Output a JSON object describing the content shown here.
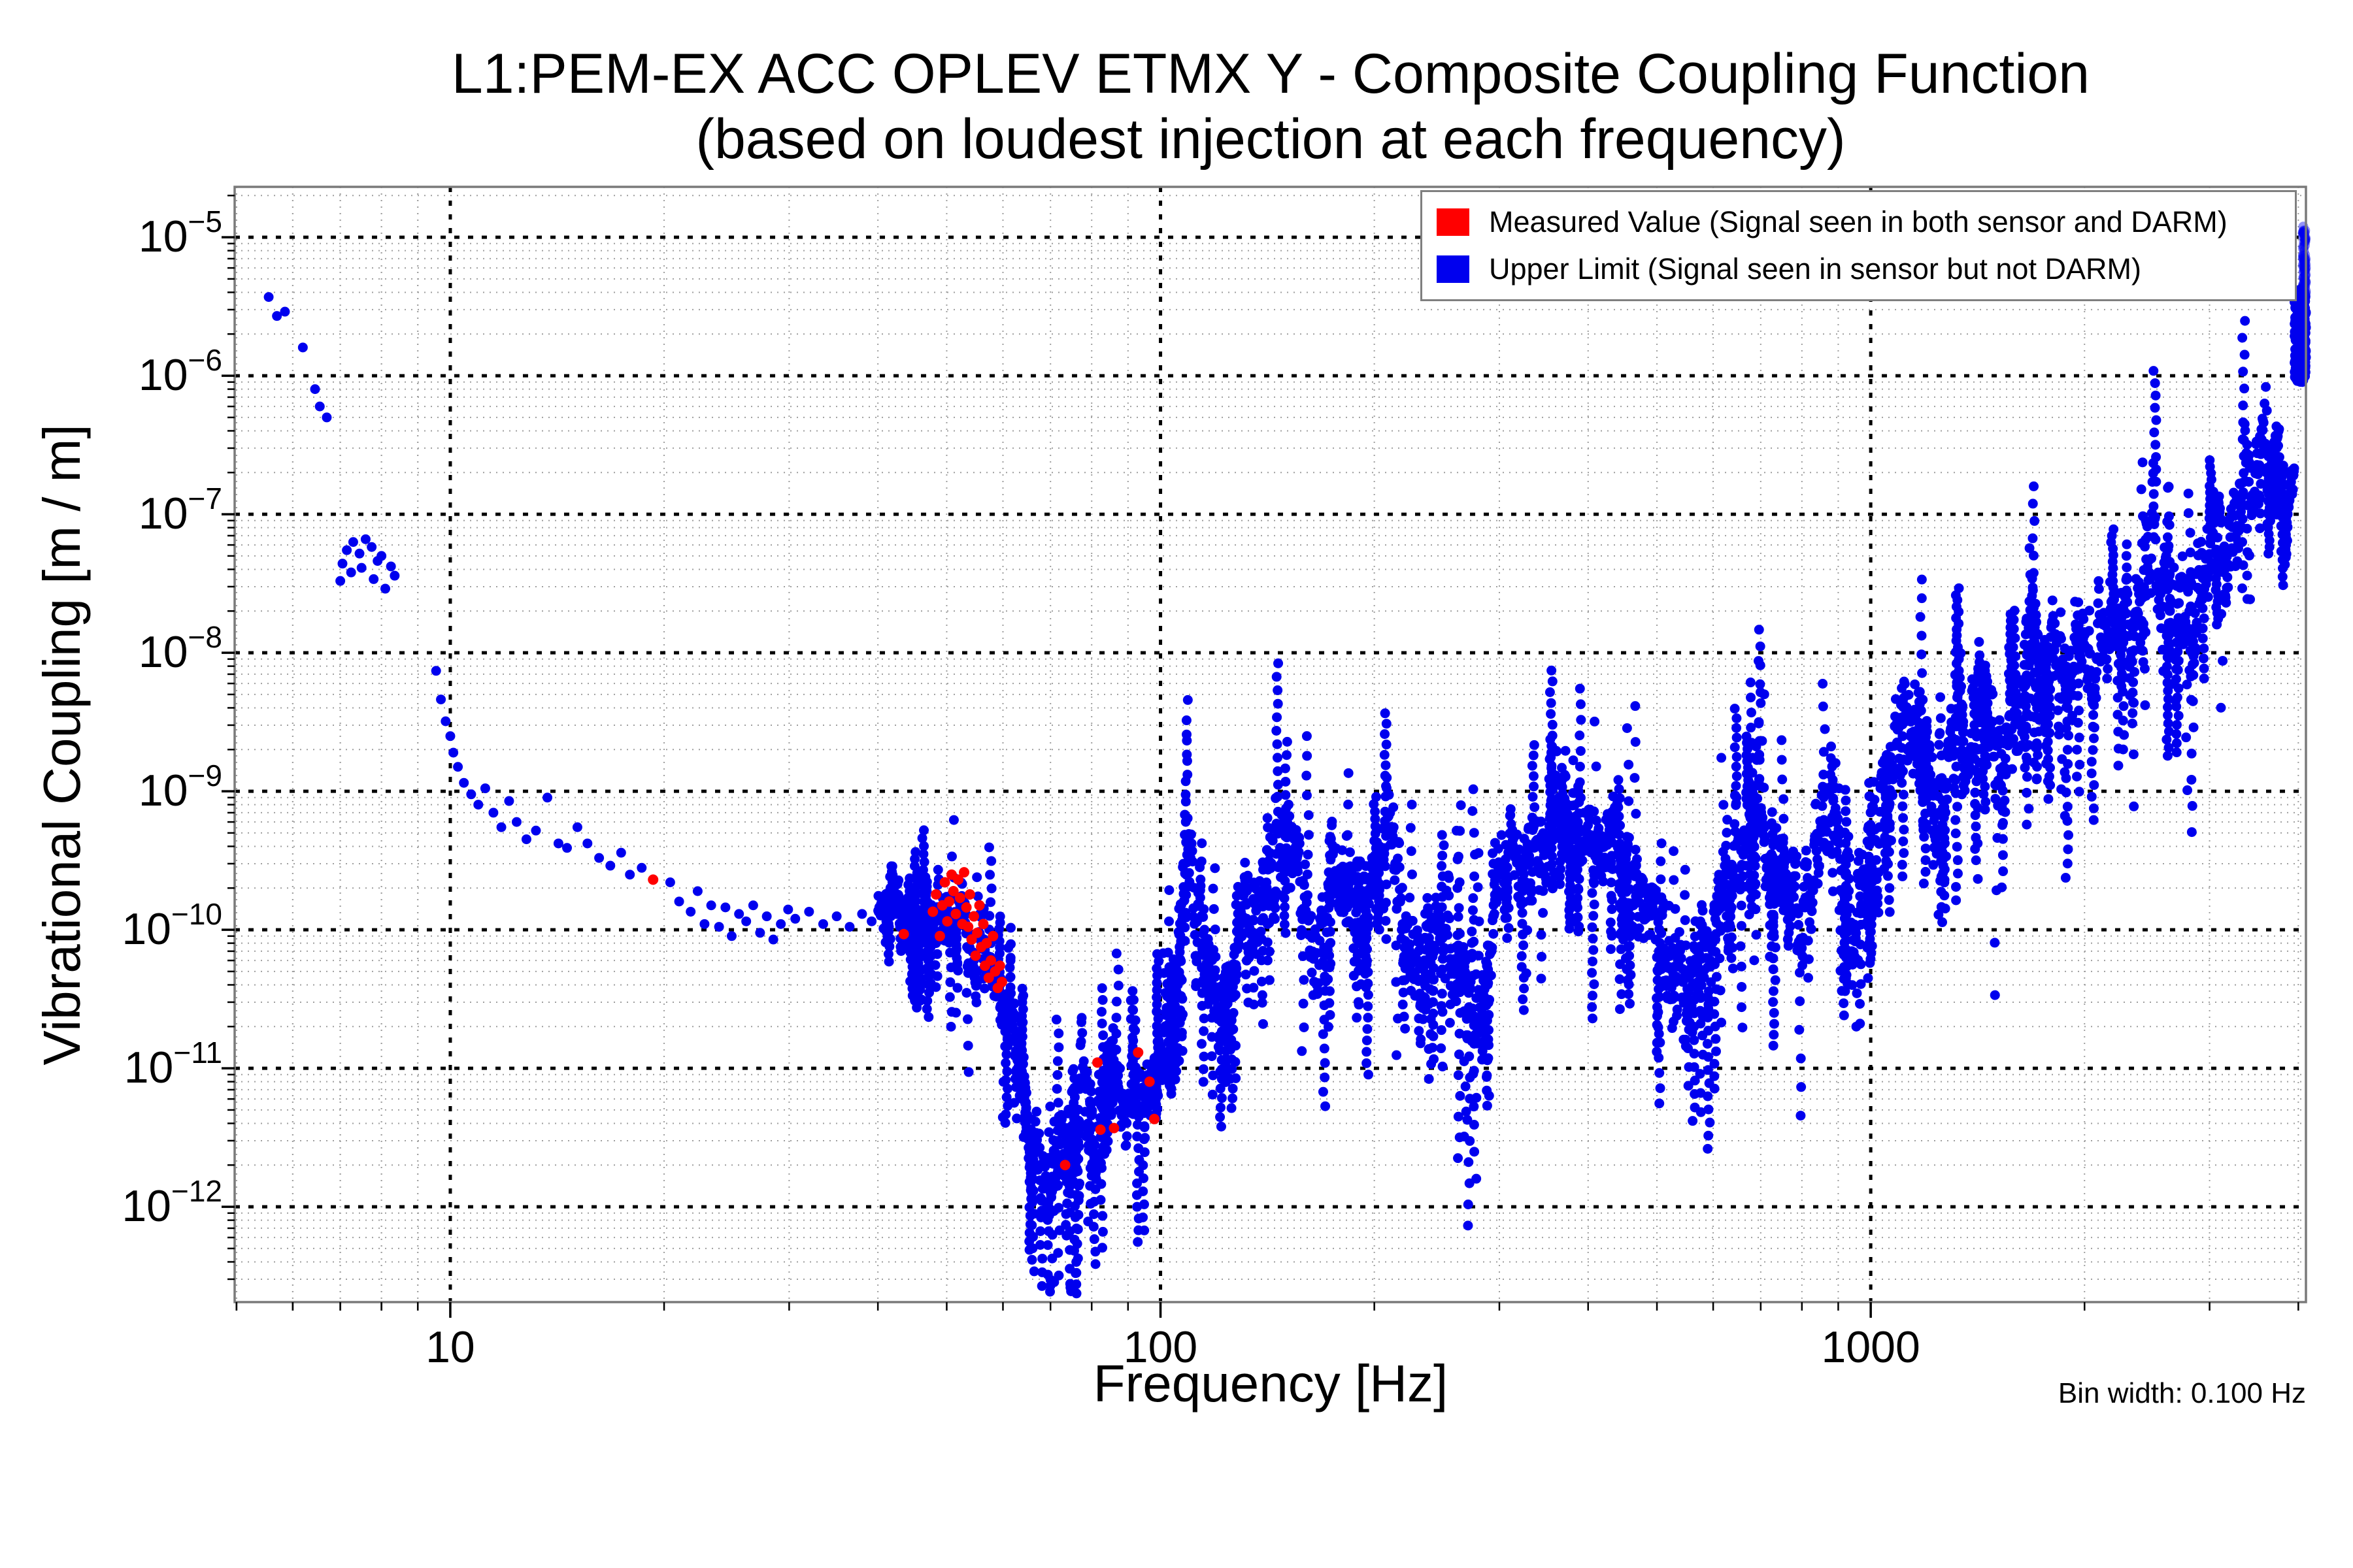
{
  "title": {
    "line1": "L1:PEM-EX ACC OPLEV ETMX Y - Composite Coupling Function",
    "line2": "(based on loudest injection at each frequency)"
  },
  "axes": {
    "xlabel": "Frequency [Hz]",
    "ylabel": "Vibrational Coupling [m / m]",
    "annotation": "Bin width: 0.100 Hz"
  },
  "legend": {
    "items": [
      {
        "label": "Measured Value (Signal seen in both sensor and DARM)",
        "color": "#ff0000"
      },
      {
        "label": "Upper Limit (Signal seen in sensor but not DARM)",
        "color": "#0000ee"
      }
    ]
  },
  "chart_data": {
    "type": "scatter",
    "title": "L1:PEM-EX ACC OPLEV ETMX Y - Composite Coupling Function",
    "subtitle": "(based on loudest injection at each frequency)",
    "xlabel": "Frequency [Hz]",
    "ylabel": "Vibrational Coupling [m / m]",
    "bin_width_hz": 0.1,
    "x_scale": "log",
    "y_scale": "log",
    "xlim": [
      4.97,
      4100
    ],
    "ylim": [
      2.05e-13,
      2.31e-05
    ],
    "x_major_ticks": [
      10,
      100,
      1000
    ],
    "x_tick_labels": [
      "10",
      "100",
      "1000"
    ],
    "y_major_tick_exponents": [
      -5,
      -6,
      -7,
      -8,
      -9,
      -10,
      -11,
      -12
    ],
    "grid": "both",
    "legend_position": "upper right",
    "colors": {
      "grid_major": "#000000",
      "grid_minor": "#9e9e9e",
      "spine": "#7a7a7a"
    },
    "series": [
      {
        "name": "Upper Limit (Signal seen in sensor but not DARM)",
        "color": "#0000ee",
        "marker_radius": 7.5,
        "noise_seed": 20,
        "points_per_decade": 1600,
        "strand_probability": 0.09,
        "sparse_points": [
          [
            5.55,
            3.7e-06
          ],
          [
            5.7,
            2.7e-06
          ],
          [
            5.85,
            2.9e-06
          ],
          [
            6.2,
            1.6e-06
          ],
          [
            6.45,
            8e-07
          ],
          [
            6.55,
            6e-07
          ],
          [
            6.7,
            5e-07
          ],
          [
            7.0,
            3.3e-08
          ],
          [
            7.05,
            4.4e-08
          ],
          [
            7.15,
            5.5e-08
          ],
          [
            7.25,
            3.8e-08
          ],
          [
            7.3,
            6.3e-08
          ],
          [
            7.45,
            5.2e-08
          ],
          [
            7.5,
            4.1e-08
          ],
          [
            7.6,
            6.6e-08
          ],
          [
            7.75,
            5.8e-08
          ],
          [
            7.8,
            3.4e-08
          ],
          [
            7.9,
            4.6e-08
          ],
          [
            8.0,
            5e-08
          ],
          [
            8.1,
            2.9e-08
          ],
          [
            8.25,
            4.2e-08
          ],
          [
            8.35,
            3.6e-08
          ],
          [
            9.55,
            7.4e-09
          ],
          [
            9.7,
            4.6e-09
          ],
          [
            9.85,
            3.2e-09
          ],
          [
            10.0,
            2.5e-09
          ],
          [
            10.1,
            1.9e-09
          ],
          [
            10.25,
            1.5e-09
          ],
          [
            10.45,
            1.15e-09
          ],
          [
            10.7,
            9.5e-10
          ],
          [
            10.95,
            8e-10
          ],
          [
            11.2,
            1.05e-09
          ],
          [
            11.5,
            7e-10
          ],
          [
            11.8,
            5.5e-10
          ],
          [
            12.1,
            8.5e-10
          ],
          [
            12.4,
            6e-10
          ],
          [
            12.8,
            4.5e-10
          ],
          [
            13.2,
            5.2e-10
          ],
          [
            13.7,
            9e-10
          ],
          [
            14.2,
            4.2e-10
          ],
          [
            14.6,
            3.9e-10
          ],
          [
            15.1,
            5.5e-10
          ],
          [
            15.6,
            4.2e-10
          ],
          [
            16.2,
            3.3e-10
          ],
          [
            16.8,
            2.9e-10
          ],
          [
            17.4,
            3.6e-10
          ],
          [
            17.9,
            2.5e-10
          ],
          [
            18.6,
            2.8e-10
          ],
          [
            20.4,
            2.2e-10
          ],
          [
            21.0,
            1.6e-10
          ],
          [
            21.8,
            1.35e-10
          ],
          [
            22.3,
            1.9e-10
          ],
          [
            22.8,
            1.1e-10
          ],
          [
            23.3,
            1.5e-10
          ],
          [
            23.9,
            1.05e-10
          ],
          [
            24.4,
            1.45e-10
          ],
          [
            24.9,
            9e-11
          ],
          [
            25.5,
            1.3e-10
          ],
          [
            26.1,
            1.15e-10
          ],
          [
            26.7,
            1.5e-10
          ],
          [
            27.3,
            9.5e-11
          ],
          [
            27.9,
            1.25e-10
          ],
          [
            28.5,
            8.5e-11
          ],
          [
            29.2,
            1.1e-10
          ],
          [
            29.9,
            1.4e-10
          ],
          [
            30.6,
            1.2e-10
          ],
          [
            32,
            1.35e-10
          ],
          [
            33.5,
            1.1e-10
          ],
          [
            35,
            1.25e-10
          ],
          [
            36.5,
            1.05e-10
          ],
          [
            38,
            1.3e-10
          ],
          [
            39.2,
            1.15e-10
          ],
          [
            3585,
            6.3e-07
          ],
          [
            3600,
            8.3e-07
          ],
          [
            3612,
            5.6e-07
          ]
        ],
        "envelope_log10": [
          [
            40,
            -9.85,
            0.22
          ],
          [
            44,
            -9.88,
            0.25
          ],
          [
            48,
            -9.95,
            0.28
          ],
          [
            52,
            -9.95,
            0.3
          ],
          [
            56,
            -10.1,
            0.3
          ],
          [
            60,
            -10.45,
            0.28
          ],
          [
            63,
            -10.9,
            0.3
          ],
          [
            66,
            -11.45,
            0.35
          ],
          [
            69,
            -11.95,
            0.4
          ],
          [
            72,
            -11.75,
            0.5
          ],
          [
            75,
            -11.45,
            0.45
          ],
          [
            78,
            -11.15,
            0.45
          ],
          [
            81,
            -11.35,
            0.4
          ],
          [
            85,
            -10.95,
            0.4
          ],
          [
            89,
            -11.35,
            0.35
          ],
          [
            93,
            -11.25,
            0.35
          ],
          [
            97,
            -11.05,
            0.3
          ],
          [
            101,
            -10.85,
            0.3
          ],
          [
            105,
            -10.35,
            0.4
          ],
          [
            109,
            -9.55,
            0.5
          ],
          [
            113,
            -9.8,
            0.5
          ],
          [
            117,
            -10.35,
            0.4
          ],
          [
            121,
            -10.6,
            0.4
          ],
          [
            126,
            -10.25,
            0.35
          ],
          [
            131,
            -10.05,
            0.35
          ],
          [
            138,
            -9.85,
            0.4
          ],
          [
            145,
            -9.5,
            0.45
          ],
          [
            152,
            -9.35,
            0.4
          ],
          [
            159,
            -9.75,
            0.4
          ],
          [
            166,
            -10.15,
            0.5
          ],
          [
            173,
            -9.8,
            0.4
          ],
          [
            181,
            -9.6,
            0.4
          ],
          [
            190,
            -9.9,
            0.42
          ],
          [
            200,
            -9.7,
            0.45
          ],
          [
            210,
            -9.25,
            0.5
          ],
          [
            221,
            -9.9,
            0.5
          ],
          [
            233,
            -10.25,
            0.5
          ],
          [
            246,
            -10.05,
            0.45
          ],
          [
            260,
            -10.3,
            0.5
          ],
          [
            277,
            -10.45,
            0.65
          ],
          [
            292,
            -9.9,
            0.42
          ],
          [
            308,
            -9.6,
            0.4
          ],
          [
            325,
            -9.5,
            0.4
          ],
          [
            345,
            -9.3,
            0.38
          ],
          [
            368,
            -9.05,
            0.35
          ],
          [
            390,
            -9.3,
            0.4
          ],
          [
            412,
            -9.4,
            0.4
          ],
          [
            432,
            -9.15,
            0.4
          ],
          [
            458,
            -9.7,
            0.42
          ],
          [
            485,
            -9.9,
            0.45
          ],
          [
            515,
            -10.15,
            0.5
          ],
          [
            546,
            -10.55,
            0.6
          ],
          [
            577,
            -10.1,
            0.42
          ],
          [
            605,
            -9.9,
            0.4
          ],
          [
            628,
            -9.65,
            0.4
          ],
          [
            648,
            -9.4,
            0.42
          ],
          [
            670,
            -9.3,
            0.45
          ],
          [
            690,
            -8.95,
            0.5
          ],
          [
            712,
            -9.5,
            0.42
          ],
          [
            737,
            -9.6,
            0.4
          ],
          [
            763,
            -9.4,
            0.4
          ],
          [
            791,
            -10.0,
            0.5
          ],
          [
            820,
            -9.6,
            0.42
          ],
          [
            851,
            -9.35,
            0.42
          ],
          [
            883,
            -9.1,
            0.45
          ],
          [
            916,
            -9.8,
            0.5
          ],
          [
            948,
            -10.05,
            0.5
          ],
          [
            981,
            -9.6,
            0.45
          ],
          [
            1010,
            -9.3,
            0.45
          ],
          [
            1045,
            -9.0,
            0.45
          ],
          [
            1085,
            -8.7,
            0.45
          ],
          [
            1140,
            -8.45,
            0.45
          ],
          [
            1210,
            -9.0,
            0.5
          ],
          [
            1280,
            -8.75,
            0.45
          ],
          [
            1355,
            -8.55,
            0.45
          ],
          [
            1430,
            -8.35,
            0.45
          ],
          [
            1500,
            -8.8,
            0.55
          ],
          [
            1565,
            -8.75,
            0.55
          ],
          [
            1625,
            -8.3,
            0.5
          ],
          [
            1680,
            -7.7,
            0.5
          ],
          [
            1745,
            -7.95,
            0.45
          ],
          [
            1810,
            -8.1,
            0.5
          ],
          [
            1880,
            -8.25,
            0.5
          ],
          [
            1955,
            -8.0,
            0.5
          ],
          [
            2030,
            -8.2,
            0.5
          ],
          [
            2120,
            -7.9,
            0.45
          ],
          [
            2210,
            -7.65,
            0.45
          ],
          [
            2310,
            -7.8,
            0.5
          ],
          [
            2410,
            -7.6,
            0.5
          ],
          [
            2510,
            -7.4,
            0.5
          ],
          [
            2615,
            -7.75,
            0.6
          ],
          [
            2730,
            -7.95,
            0.65
          ],
          [
            2850,
            -7.5,
            0.5
          ],
          [
            2960,
            -7.3,
            0.45
          ],
          [
            3080,
            -7.1,
            0.45
          ],
          [
            3200,
            -7.15,
            0.42
          ],
          [
            3310,
            -7.0,
            0.4
          ],
          [
            3420,
            -6.85,
            0.4
          ],
          [
            3530,
            -6.62,
            0.35
          ],
          [
            3640,
            -6.5,
            0.3
          ],
          [
            3760,
            -6.75,
            0.3
          ],
          [
            3880,
            -6.7,
            0.28
          ],
          [
            3950,
            -6.6,
            0.28
          ]
        ],
        "edge_spike": {
          "solid": {
            "f": [
              3950,
              4100
            ],
            "log10_v": [
              -6.05,
              -5.37
            ],
            "n": 170
          },
          "solid_edge": {
            "f": [
              4055,
              4100
            ],
            "log10_v": [
              -6.0,
              -5.42
            ],
            "n": 70
          },
          "light": {
            "f": [
              4058,
              4100
            ],
            "log10_v": [
              -5.45,
              -4.92
            ],
            "n": 90,
            "opacity": 0.42
          }
        }
      },
      {
        "name": "Measured Value (Signal seen in both sensor and DARM)",
        "color": "#ff0000",
        "marker_radius": 8,
        "points": [
          [
            19.3,
            2.3e-10
          ],
          [
            43.5,
            9.3e-11
          ],
          [
            47.8,
            1.35e-10
          ],
          [
            48.3,
            1.8e-10
          ],
          [
            48.9,
            9e-11
          ],
          [
            49.3,
            1.5e-10
          ],
          [
            49.7,
            2.2e-10
          ],
          [
            50.1,
            1.15e-10
          ],
          [
            50.4,
            1.6e-10
          ],
          [
            50.8,
            2.5e-10
          ],
          [
            51.1,
            1.9e-10
          ],
          [
            51.5,
            1.3e-10
          ],
          [
            51.9,
            2.3e-10
          ],
          [
            52.2,
            1.7e-10
          ],
          [
            52.6,
            1.1e-10
          ],
          [
            52.9,
            2.6e-10
          ],
          [
            53.3,
            1.45e-10
          ],
          [
            53.6,
            1.05e-10
          ],
          [
            53.9,
            1.8e-10
          ],
          [
            54.2,
            8.5e-11
          ],
          [
            54.6,
            1.25e-10
          ],
          [
            54.9,
            6.5e-11
          ],
          [
            55.2,
            9.5e-11
          ],
          [
            55.6,
            1.5e-10
          ],
          [
            55.9,
            7.5e-11
          ],
          [
            56.3,
            1.1e-10
          ],
          [
            56.6,
            5.5e-11
          ],
          [
            56.9,
            8e-11
          ],
          [
            57.3,
            4.5e-11
          ],
          [
            57.7,
            6e-11
          ],
          [
            58.1,
            9e-11
          ],
          [
            58.5,
            5e-11
          ],
          [
            59.0,
            3.8e-11
          ],
          [
            59.4,
            5.5e-11
          ],
          [
            59.8,
            4.2e-11
          ],
          [
            73.4,
            2e-12
          ],
          [
            81.5,
            1.1e-11
          ],
          [
            82.3,
            3.6e-12
          ],
          [
            86.0,
            3.7e-12
          ],
          [
            93.0,
            1.3e-11
          ],
          [
            96.5,
            8e-12
          ],
          [
            98.0,
            4.3e-12
          ]
        ]
      }
    ]
  }
}
